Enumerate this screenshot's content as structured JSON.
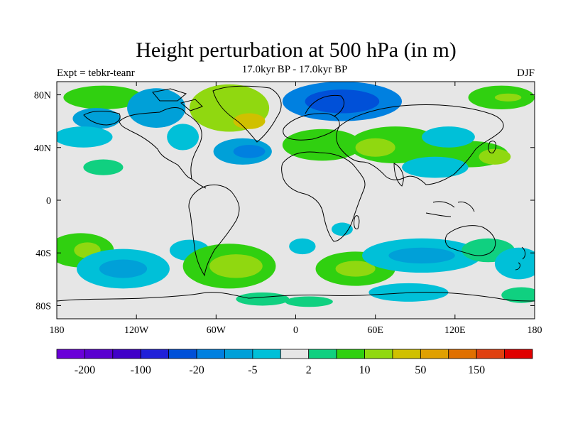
{
  "title": "Height perturbation at 500 hPa (in m)",
  "subtitle": "17.0kyr BP - 17.0kyr BP",
  "experiment": "Expt = tebkr-teanr",
  "season": "DJF",
  "map": {
    "projection": "cylindrical-equidistant",
    "lon_range": [
      -180,
      180
    ],
    "lat_range": [
      -90,
      90
    ],
    "lat_ticks": [
      {
        "value": 80,
        "label": "80N"
      },
      {
        "value": 40,
        "label": "40N"
      },
      {
        "value": 0,
        "label": "0"
      },
      {
        "value": -40,
        "label": "40S"
      },
      {
        "value": -80,
        "label": "80S"
      }
    ],
    "lon_ticks": [
      {
        "value": -180,
        "label": "180"
      },
      {
        "value": -120,
        "label": "120W"
      },
      {
        "value": -60,
        "label": "60W"
      },
      {
        "value": 0,
        "label": "0"
      },
      {
        "value": 60,
        "label": "60E"
      },
      {
        "value": 120,
        "label": "120E"
      },
      {
        "value": 180,
        "label": "180"
      }
    ],
    "background_color": "#e6e6e6",
    "anomaly_regions": [
      {
        "lon": -145,
        "lat": 78,
        "rx": 30,
        "ry": 9,
        "level": 2
      },
      {
        "lon": -150,
        "lat": 62,
        "rx": 18,
        "ry": 8,
        "level": -2
      },
      {
        "lon": -160,
        "lat": 48,
        "rx": 22,
        "ry": 8,
        "level": -1
      },
      {
        "lon": -105,
        "lat": 70,
        "rx": 22,
        "ry": 15,
        "level": -2
      },
      {
        "lon": -85,
        "lat": 48,
        "rx": 12,
        "ry": 10,
        "level": -1
      },
      {
        "lon": -50,
        "lat": 70,
        "rx": 30,
        "ry": 18,
        "level": 3
      },
      {
        "lon": -35,
        "lat": 60,
        "rx": 12,
        "ry": 6,
        "level": 4
      },
      {
        "lon": -40,
        "lat": 37,
        "rx": 22,
        "ry": 10,
        "level": -2
      },
      {
        "lon": -35,
        "lat": 37,
        "rx": 12,
        "ry": 5,
        "level": -3
      },
      {
        "lon": 35,
        "lat": 75,
        "rx": 45,
        "ry": 15,
        "level": -3
      },
      {
        "lon": 35,
        "lat": 75,
        "rx": 28,
        "ry": 9,
        "level": -4
      },
      {
        "lon": 20,
        "lat": 42,
        "rx": 30,
        "ry": 12,
        "level": 2
      },
      {
        "lon": 75,
        "lat": 42,
        "rx": 35,
        "ry": 14,
        "level": 2
      },
      {
        "lon": 60,
        "lat": 40,
        "rx": 15,
        "ry": 7,
        "level": 3
      },
      {
        "lon": 130,
        "lat": 35,
        "rx": 30,
        "ry": 10,
        "level": 2
      },
      {
        "lon": 150,
        "lat": 33,
        "rx": 12,
        "ry": 6,
        "level": 3
      },
      {
        "lon": 115,
        "lat": 48,
        "rx": 20,
        "ry": 8,
        "level": -1
      },
      {
        "lon": 105,
        "lat": 25,
        "rx": 25,
        "ry": 8,
        "level": -1
      },
      {
        "lon": 155,
        "lat": 78,
        "rx": 25,
        "ry": 9,
        "level": 2
      },
      {
        "lon": 160,
        "lat": 78,
        "rx": 10,
        "ry": 3,
        "level": 3
      },
      {
        "lon": -145,
        "lat": 25,
        "rx": 15,
        "ry": 6,
        "level": 1
      },
      {
        "lon": -162,
        "lat": -38,
        "rx": 25,
        "ry": 13,
        "level": 2
      },
      {
        "lon": -157,
        "lat": -38,
        "rx": 10,
        "ry": 6,
        "level": 3
      },
      {
        "lon": -130,
        "lat": -52,
        "rx": 35,
        "ry": 15,
        "level": -1
      },
      {
        "lon": -130,
        "lat": -52,
        "rx": 18,
        "ry": 7,
        "level": -2
      },
      {
        "lon": -80,
        "lat": -38,
        "rx": 15,
        "ry": 8,
        "level": -1
      },
      {
        "lon": -50,
        "lat": -50,
        "rx": 35,
        "ry": 17,
        "level": 2
      },
      {
        "lon": -45,
        "lat": -50,
        "rx": 20,
        "ry": 9,
        "level": 3
      },
      {
        "lon": -25,
        "lat": -75,
        "rx": 20,
        "ry": 5,
        "level": 1
      },
      {
        "lon": 5,
        "lat": -35,
        "rx": 10,
        "ry": 6,
        "level": -1
      },
      {
        "lon": 10,
        "lat": -77,
        "rx": 18,
        "ry": 4,
        "level": 1
      },
      {
        "lon": 45,
        "lat": -52,
        "rx": 30,
        "ry": 13,
        "level": 2
      },
      {
        "lon": 45,
        "lat": -52,
        "rx": 15,
        "ry": 6,
        "level": 3
      },
      {
        "lon": 35,
        "lat": -22,
        "rx": 8,
        "ry": 5,
        "level": -1
      },
      {
        "lon": 95,
        "lat": -42,
        "rx": 45,
        "ry": 13,
        "level": -1
      },
      {
        "lon": 95,
        "lat": -42,
        "rx": 25,
        "ry": 6,
        "level": -2
      },
      {
        "lon": 85,
        "lat": -70,
        "rx": 30,
        "ry": 7,
        "level": -1
      },
      {
        "lon": 145,
        "lat": -38,
        "rx": 20,
        "ry": 9,
        "level": 1
      },
      {
        "lon": 168,
        "lat": -48,
        "rx": 18,
        "ry": 12,
        "level": -1
      },
      {
        "lon": 170,
        "lat": -72,
        "rx": 15,
        "ry": 6,
        "level": 1
      }
    ]
  },
  "colorbar": {
    "colors": [
      "#6a00d8",
      "#5a00d0",
      "#4000c8",
      "#2020d8",
      "#0050d8",
      "#0080e0",
      "#00a0d8",
      "#00c0d8",
      "#e6e6e6",
      "#10d080",
      "#30d010",
      "#90d810",
      "#d0c000",
      "#e0a000",
      "#e07000",
      "#e04010",
      "#e00000"
    ],
    "tick_labels": [
      {
        "boundary": 1,
        "label": "-200"
      },
      {
        "boundary": 3,
        "label": "-100"
      },
      {
        "boundary": 5,
        "label": "-20"
      },
      {
        "boundary": 7,
        "label": "-5"
      },
      {
        "boundary": 9,
        "label": "2"
      },
      {
        "boundary": 11,
        "label": "10"
      },
      {
        "boundary": 13,
        "label": "50"
      },
      {
        "boundary": 15,
        "label": "150"
      }
    ]
  }
}
